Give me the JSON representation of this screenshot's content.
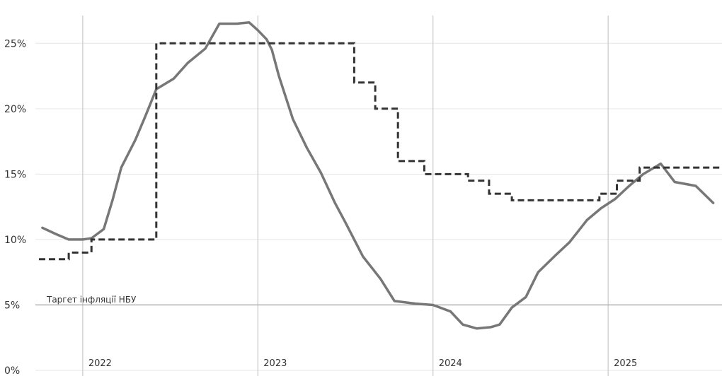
{
  "chart_data": {
    "type": "line",
    "y_ticks": [
      "0%",
      "5%",
      "10%",
      "15%",
      "20%",
      "25%"
    ],
    "ylim": [
      0,
      27.5
    ],
    "x_ticks": [
      {
        "label": "2022",
        "x": 2022.0
      },
      {
        "label": "2023",
        "x": 2023.0
      },
      {
        "label": "2024",
        "x": 2024.0
      },
      {
        "label": "2025",
        "x": 2025.0
      }
    ],
    "xlim": [
      2021.75,
      2025.65
    ],
    "grid": "horizontal lines at y ticks, vertical lines at year starts",
    "target": {
      "label": "Таргет інфляції НБУ",
      "value": 5
    },
    "series": [
      {
        "style": "solid",
        "color": "#777777",
        "points": [
          [
            2021.77,
            10.9
          ],
          [
            2021.85,
            10.4
          ],
          [
            2021.92,
            10.0
          ],
          [
            2022.0,
            10.0
          ],
          [
            2022.05,
            10.1
          ],
          [
            2022.12,
            10.8
          ],
          [
            2022.17,
            13.0
          ],
          [
            2022.22,
            15.5
          ],
          [
            2022.3,
            17.6
          ],
          [
            2022.36,
            19.5
          ],
          [
            2022.42,
            21.5
          ],
          [
            2022.52,
            22.3
          ],
          [
            2022.6,
            23.5
          ],
          [
            2022.7,
            24.6
          ],
          [
            2022.78,
            26.5
          ],
          [
            2022.88,
            26.5
          ],
          [
            2022.95,
            26.6
          ],
          [
            2023.0,
            26.0
          ],
          [
            2023.05,
            25.3
          ],
          [
            2023.08,
            24.5
          ],
          [
            2023.12,
            22.5
          ],
          [
            2023.2,
            19.2
          ],
          [
            2023.28,
            17.0
          ],
          [
            2023.36,
            15.1
          ],
          [
            2023.44,
            12.8
          ],
          [
            2023.5,
            11.3
          ],
          [
            2023.6,
            8.7
          ],
          [
            2023.7,
            7.0
          ],
          [
            2023.78,
            5.3
          ],
          [
            2023.9,
            5.1
          ],
          [
            2024.0,
            5.0
          ],
          [
            2024.1,
            4.5
          ],
          [
            2024.17,
            3.5
          ],
          [
            2024.25,
            3.2
          ],
          [
            2024.33,
            3.3
          ],
          [
            2024.38,
            3.5
          ],
          [
            2024.45,
            4.8
          ],
          [
            2024.53,
            5.6
          ],
          [
            2024.6,
            7.5
          ],
          [
            2024.7,
            8.8
          ],
          [
            2024.78,
            9.8
          ],
          [
            2024.88,
            11.5
          ],
          [
            2024.96,
            12.4
          ],
          [
            2025.04,
            13.1
          ],
          [
            2025.12,
            14.1
          ],
          [
            2025.2,
            15.0
          ],
          [
            2025.3,
            15.8
          ],
          [
            2025.38,
            14.4
          ],
          [
            2025.5,
            14.1
          ],
          [
            2025.6,
            12.8
          ]
        ]
      },
      {
        "style": "dashed",
        "color": "#333333",
        "points": [
          [
            2021.75,
            8.5
          ],
          [
            2021.92,
            8.5
          ],
          [
            2021.92,
            9.0
          ],
          [
            2022.05,
            9.0
          ],
          [
            2022.05,
            10.0
          ],
          [
            2022.42,
            10.0
          ],
          [
            2022.42,
            25.0
          ],
          [
            2023.55,
            25.0
          ],
          [
            2023.55,
            22.0
          ],
          [
            2023.67,
            22.0
          ],
          [
            2023.67,
            20.0
          ],
          [
            2023.8,
            20.0
          ],
          [
            2023.8,
            16.0
          ],
          [
            2023.95,
            16.0
          ],
          [
            2023.95,
            15.0
          ],
          [
            2024.2,
            15.0
          ],
          [
            2024.2,
            14.5
          ],
          [
            2024.32,
            14.5
          ],
          [
            2024.32,
            13.5
          ],
          [
            2024.45,
            13.5
          ],
          [
            2024.45,
            13.0
          ],
          [
            2024.95,
            13.0
          ],
          [
            2024.95,
            13.5
          ],
          [
            2025.05,
            13.5
          ],
          [
            2025.05,
            14.5
          ],
          [
            2025.18,
            14.5
          ],
          [
            2025.18,
            15.5
          ],
          [
            2025.65,
            15.5
          ]
        ]
      }
    ]
  }
}
